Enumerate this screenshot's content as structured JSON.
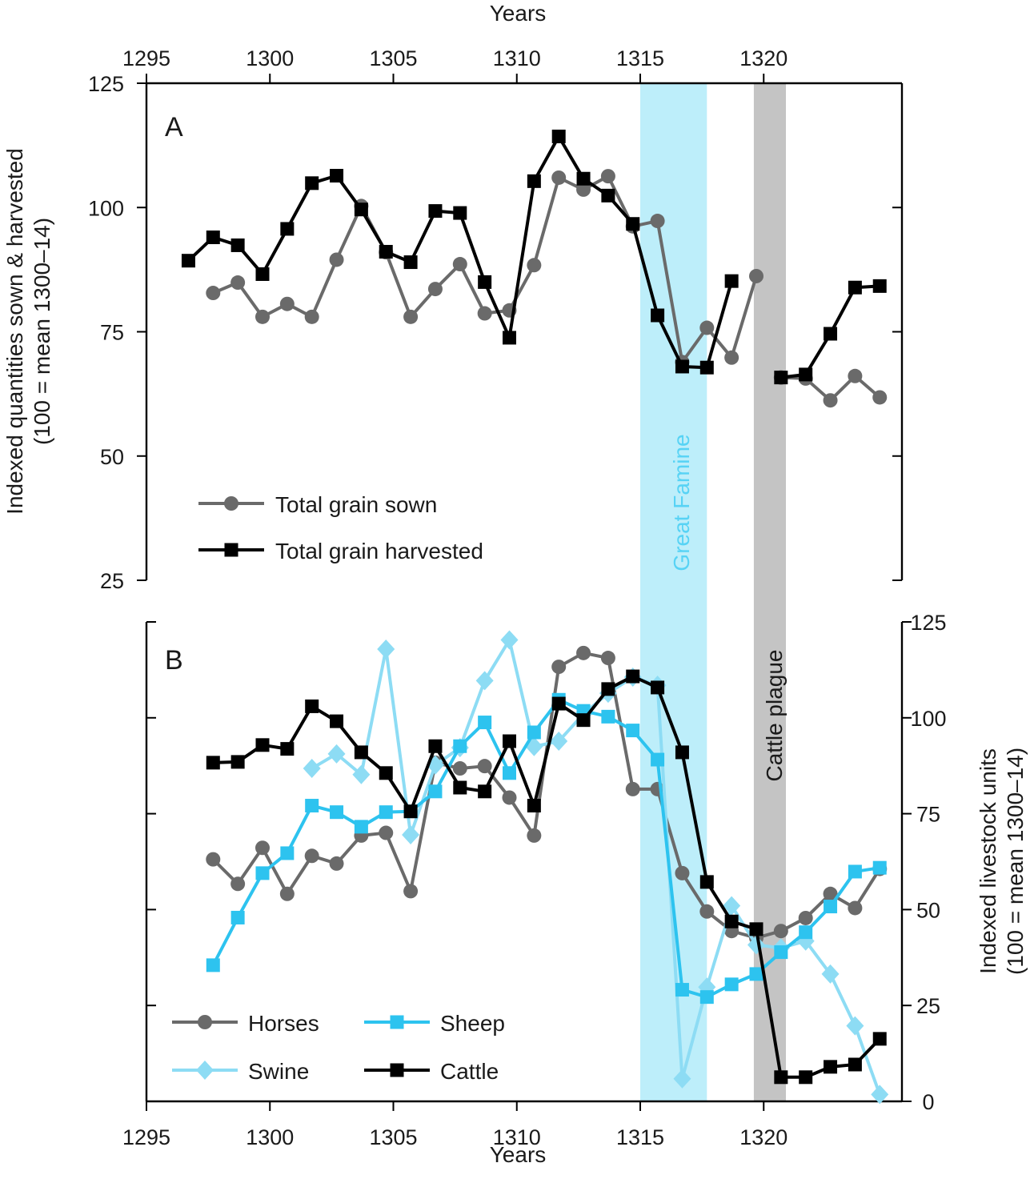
{
  "chart_data": [
    {
      "type": "line",
      "panel": "A",
      "panel_label": "A",
      "xlabel_top": "Years",
      "ylabel": [
        "Indexed quantities sown & harvested",
        "(100 = mean 1300–14)"
      ],
      "xlim": [
        1295,
        1324.5
      ],
      "xticks": [
        1295,
        1300,
        1305,
        1310,
        1315,
        1320
      ],
      "ylim": [
        25,
        125
      ],
      "yticks": [
        25,
        50,
        75,
        100,
        125
      ],
      "shaded_regions": [
        {
          "label": "Great Famine",
          "start": 1315,
          "end": 1317.7,
          "color": "#bdeefa",
          "text_color": "#57d3f5"
        },
        {
          "label": "Cattle plague",
          "start": 1319.6,
          "end": 1320.9,
          "color": "#c4c4c4",
          "text_color": "#1a1a1a"
        }
      ],
      "legend_position": "bottom-left",
      "series": [
        {
          "name": "Total grain sown",
          "color": "#6a6a6a",
          "marker": "circle",
          "segments": [
            [
              [
                1297.7,
                82.8
              ],
              [
                1298.7,
                84.9
              ],
              [
                1299.7,
                78.0
              ],
              [
                1300.7,
                80.6
              ],
              [
                1301.7,
                78.0
              ],
              [
                1302.7,
                89.5
              ],
              [
                1303.7,
                100.3
              ],
              [
                1304.7,
                91.0
              ],
              [
                1305.7,
                78.0
              ],
              [
                1306.7,
                83.6
              ],
              [
                1307.7,
                88.6
              ],
              [
                1308.7,
                78.7
              ],
              [
                1309.7,
                79.3
              ],
              [
                1310.7,
                88.4
              ],
              [
                1311.7,
                106.0
              ],
              [
                1312.7,
                103.6
              ],
              [
                1313.7,
                106.3
              ],
              [
                1314.7,
                96.2
              ],
              [
                1315.7,
                97.3
              ],
              [
                1316.7,
                68.9
              ],
              [
                1317.7,
                75.8
              ],
              [
                1318.7,
                69.8
              ],
              [
                1319.7,
                86.2
              ]
            ],
            [
              [
                1320.7,
                65.8
              ],
              [
                1321.7,
                65.6
              ],
              [
                1322.7,
                61.2
              ],
              [
                1323.7,
                66.1
              ],
              [
                1324.7,
                61.8
              ]
            ]
          ]
        },
        {
          "name": "Total grain harvested",
          "color": "#000000",
          "marker": "square",
          "segments": [
            [
              [
                1296.7,
                89.3
              ],
              [
                1297.7,
                94.0
              ],
              [
                1298.7,
                92.4
              ],
              [
                1299.7,
                86.6
              ],
              [
                1300.7,
                95.7
              ],
              [
                1301.7,
                104.9
              ],
              [
                1302.7,
                106.4
              ],
              [
                1303.7,
                99.6
              ],
              [
                1304.7,
                91.1
              ],
              [
                1305.7,
                89.0
              ],
              [
                1306.7,
                99.3
              ],
              [
                1307.7,
                98.9
              ],
              [
                1308.7,
                85.0
              ],
              [
                1309.7,
                73.8
              ],
              [
                1310.7,
                105.3
              ],
              [
                1311.7,
                114.3
              ],
              [
                1312.7,
                105.8
              ],
              [
                1313.7,
                102.4
              ],
              [
                1314.7,
                96.7
              ],
              [
                1315.7,
                78.3
              ],
              [
                1316.7,
                68.0
              ],
              [
                1317.7,
                67.8
              ],
              [
                1318.7,
                85.2
              ]
            ],
            [
              [
                1320.7,
                65.8
              ],
              [
                1321.7,
                66.4
              ],
              [
                1322.7,
                74.6
              ],
              [
                1323.7,
                83.9
              ],
              [
                1324.7,
                84.2
              ]
            ]
          ]
        }
      ]
    },
    {
      "type": "line",
      "panel": "B",
      "panel_label": "B",
      "xlabel": "Years",
      "ylabel": [
        "Indexed livestock units",
        "(100 = mean 1300–14)"
      ],
      "xlim": [
        1295,
        1324.5
      ],
      "xticks": [
        1295,
        1300,
        1305,
        1310,
        1315,
        1320
      ],
      "ylim": [
        0,
        125
      ],
      "yticks": [
        0,
        25,
        50,
        75,
        100,
        125
      ],
      "legend_position": "bottom-left",
      "series": [
        {
          "name": "Horses",
          "color": "#6a6a6a",
          "marker": "circle",
          "segments": [
            [
              [
                1297.7,
                63.1
              ],
              [
                1298.7,
                56.7
              ],
              [
                1299.7,
                66.1
              ],
              [
                1300.7,
                54.1
              ],
              [
                1301.7,
                64.0
              ],
              [
                1302.7,
                62.0
              ],
              [
                1303.7,
                69.3
              ],
              [
                1304.7,
                70.0
              ],
              [
                1305.7,
                54.8
              ],
              [
                1306.7,
                88.3
              ],
              [
                1307.7,
                86.8
              ],
              [
                1308.7,
                87.4
              ],
              [
                1309.7,
                79.2
              ],
              [
                1310.7,
                69.3
              ],
              [
                1311.7,
                113.3
              ],
              [
                1312.7,
                116.9
              ],
              [
                1313.7,
                115.6
              ],
              [
                1314.7,
                81.4
              ],
              [
                1315.7,
                81.4
              ],
              [
                1316.7,
                59.5
              ],
              [
                1317.7,
                49.5
              ],
              [
                1318.7,
                44.4
              ],
              [
                1319.7,
                42.6
              ],
              [
                1320.7,
                44.4
              ],
              [
                1321.7,
                47.8
              ],
              [
                1322.7,
                54.1
              ],
              [
                1323.7,
                50.4
              ],
              [
                1324.7,
                60.6
              ]
            ]
          ]
        },
        {
          "name": "Swine",
          "color": "#8ddcf4",
          "marker": "diamond",
          "segments": [
            [
              [
                1301.7,
                86.8
              ],
              [
                1302.7,
                90.6
              ],
              [
                1303.7,
                85.2
              ],
              [
                1304.7,
                117.9
              ],
              [
                1305.7,
                69.5
              ],
              [
                1306.7,
                87.7
              ],
              [
                1307.7,
                92.2
              ],
              [
                1308.7,
                109.7
              ],
              [
                1309.7,
                120.3
              ],
              [
                1310.7,
                92.5
              ],
              [
                1311.7,
                93.9
              ],
              [
                1312.7,
                101.0
              ],
              [
                1313.7,
                106.4
              ],
              [
                1314.7,
                110.6
              ],
              [
                1315.7,
                108.5
              ],
              [
                1316.7,
                5.9
              ],
              [
                1317.7,
                29.8
              ],
              [
                1318.7,
                51.0
              ],
              [
                1319.7,
                40.8
              ],
              [
                1320.7,
                40.0
              ],
              [
                1321.7,
                41.8
              ],
              [
                1322.7,
                33.2
              ],
              [
                1323.7,
                19.7
              ],
              [
                1324.7,
                1.8
              ]
            ]
          ]
        },
        {
          "name": "Sheep",
          "color": "#2dc3ef",
          "marker": "square",
          "segments": [
            [
              [
                1297.7,
                35.5
              ],
              [
                1298.7,
                47.9
              ],
              [
                1299.7,
                59.5
              ],
              [
                1300.7,
                64.7
              ],
              [
                1301.7,
                77.1
              ],
              [
                1302.7,
                75.4
              ],
              [
                1303.7,
                71.6
              ],
              [
                1304.7,
                75.4
              ],
              [
                1305.7,
                75.6
              ],
              [
                1306.7,
                80.8
              ],
              [
                1307.7,
                92.6
              ],
              [
                1308.7,
                98.8
              ],
              [
                1309.7,
                85.6
              ],
              [
                1310.7,
                96.2
              ],
              [
                1311.7,
                104.7
              ],
              [
                1312.7,
                101.8
              ],
              [
                1313.7,
                100.3
              ],
              [
                1314.7,
                96.7
              ],
              [
                1315.7,
                89.1
              ],
              [
                1316.7,
                29.1
              ],
              [
                1317.7,
                27.2
              ],
              [
                1318.7,
                30.5
              ],
              [
                1319.7,
                33.2
              ],
              [
                1320.7,
                38.9
              ],
              [
                1321.7,
                44.1
              ],
              [
                1322.7,
                50.8
              ],
              [
                1323.7,
                59.9
              ],
              [
                1324.7,
                60.9
              ]
            ]
          ]
        },
        {
          "name": "Cattle",
          "color": "#000000",
          "marker": "square",
          "segments": [
            [
              [
                1297.7,
                88.3
              ],
              [
                1298.7,
                88.5
              ],
              [
                1299.7,
                92.9
              ],
              [
                1300.7,
                91.9
              ],
              [
                1301.7,
                103.0
              ],
              [
                1302.7,
                99.1
              ],
              [
                1303.7,
                91.0
              ],
              [
                1304.7,
                85.6
              ],
              [
                1305.7,
                75.6
              ],
              [
                1306.7,
                92.6
              ],
              [
                1307.7,
                81.8
              ],
              [
                1308.7,
                80.8
              ],
              [
                1309.7,
                93.9
              ],
              [
                1310.7,
                77.1
              ],
              [
                1311.7,
                103.7
              ],
              [
                1312.7,
                99.4
              ],
              [
                1313.7,
                107.5
              ],
              [
                1314.7,
                110.8
              ],
              [
                1315.7,
                107.9
              ],
              [
                1316.7,
                91.0
              ],
              [
                1317.7,
                57.2
              ],
              [
                1318.7,
                46.9
              ],
              [
                1319.7,
                44.9
              ],
              [
                1320.7,
                6.3
              ],
              [
                1321.7,
                6.3
              ],
              [
                1322.7,
                9.0
              ],
              [
                1323.7,
                9.6
              ],
              [
                1324.7,
                16.3
              ]
            ]
          ]
        }
      ]
    }
  ]
}
